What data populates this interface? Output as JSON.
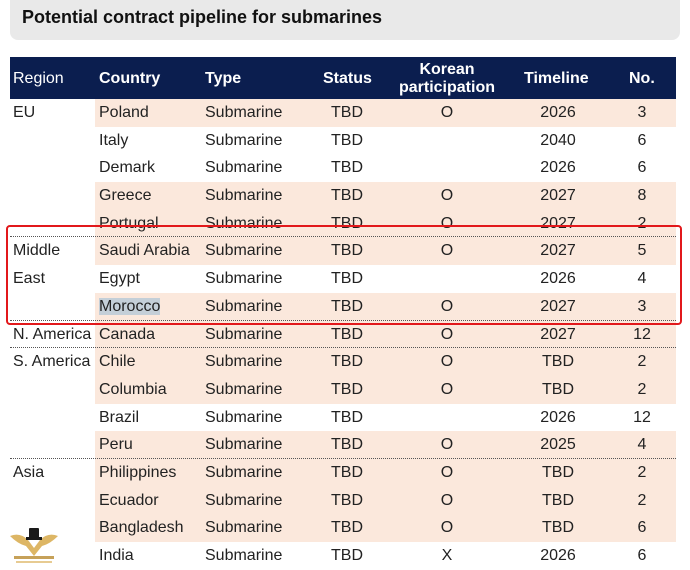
{
  "title": "Potential contract pipeline for submarines",
  "headers": {
    "region": "Region",
    "country": "Country",
    "type": "Type",
    "status": "Status",
    "korean_line1": "Korean",
    "korean_line2": "participation",
    "timeline": "Timeline",
    "no": "No."
  },
  "rows": [
    {
      "region": "EU",
      "country": "Poland",
      "type": "Submarine",
      "status": "TBD",
      "korean": "O",
      "timeline": "2026",
      "no": "3",
      "shaded": true
    },
    {
      "region": "",
      "country": "Italy",
      "type": "Submarine",
      "status": "TBD",
      "korean": "",
      "timeline": "2040",
      "no": "6",
      "shaded": false
    },
    {
      "region": "",
      "country": "Demark",
      "type": "Submarine",
      "status": "TBD",
      "korean": "",
      "timeline": "2026",
      "no": "6",
      "shaded": false
    },
    {
      "region": "",
      "country": "Greece",
      "type": "Submarine",
      "status": "TBD",
      "korean": "O",
      "timeline": "2027",
      "no": "8",
      "shaded": true
    },
    {
      "region": "",
      "country": "Portugal",
      "type": "Submarine",
      "status": "TBD",
      "korean": "O",
      "timeline": "2027",
      "no": "2",
      "shaded": true
    },
    {
      "region": "Middle",
      "country": "Saudi Arabia",
      "type": "Submarine",
      "status": "TBD",
      "korean": "O",
      "timeline": "2027",
      "no": "5",
      "shaded": true
    },
    {
      "region": "East",
      "country": "Egypt",
      "type": "Submarine",
      "status": "TBD",
      "korean": "",
      "timeline": "2026",
      "no": "4",
      "shaded": false
    },
    {
      "region": "",
      "country": "Morocco",
      "type": "Submarine",
      "status": "TBD",
      "korean": "O",
      "timeline": "2027",
      "no": "3",
      "shaded": true
    },
    {
      "region": "N. America",
      "country": "Canada",
      "type": "Submarine",
      "status": "TBD",
      "korean": "O",
      "timeline": "2027",
      "no": "12",
      "shaded": true
    },
    {
      "region": "S. America",
      "country": "Chile",
      "type": "Submarine",
      "status": "TBD",
      "korean": "O",
      "timeline": "TBD",
      "no": "2",
      "shaded": true
    },
    {
      "region": "",
      "country": "Columbia",
      "type": "Submarine",
      "status": "TBD",
      "korean": "O",
      "timeline": "TBD",
      "no": "2",
      "shaded": true
    },
    {
      "region": "",
      "country": "Brazil",
      "type": "Submarine",
      "status": "TBD",
      "korean": "",
      "timeline": "2026",
      "no": "12",
      "shaded": false
    },
    {
      "region": "",
      "country": "Peru",
      "type": "Submarine",
      "status": "TBD",
      "korean": "O",
      "timeline": "2025",
      "no": "4",
      "shaded": true
    },
    {
      "region": "Asia",
      "country": "Philippines",
      "type": "Submarine",
      "status": "TBD",
      "korean": "O",
      "timeline": "TBD",
      "no": "2",
      "shaded": true
    },
    {
      "region": "",
      "country": "Ecuador",
      "type": "Submarine",
      "status": "TBD",
      "korean": "O",
      "timeline": "TBD",
      "no": "2",
      "shaded": true
    },
    {
      "region": "",
      "country": "Bangladesh",
      "type": "Submarine",
      "status": "TBD",
      "korean": "O",
      "timeline": "TBD",
      "no": "6",
      "shaded": true
    },
    {
      "region": "",
      "country": "India",
      "type": "Submarine",
      "status": "TBD",
      "korean": "X",
      "timeline": "2026",
      "no": "6",
      "shaded": false
    }
  ],
  "selected_text": "Morocco",
  "watermark_logo": "mad-hatter-wing-logo",
  "colors": {
    "header_bg": "#0b1e4f",
    "row_shade": "#fbe8dc",
    "highlight_box": "#e2181b",
    "selection": "#c4cfd8"
  }
}
